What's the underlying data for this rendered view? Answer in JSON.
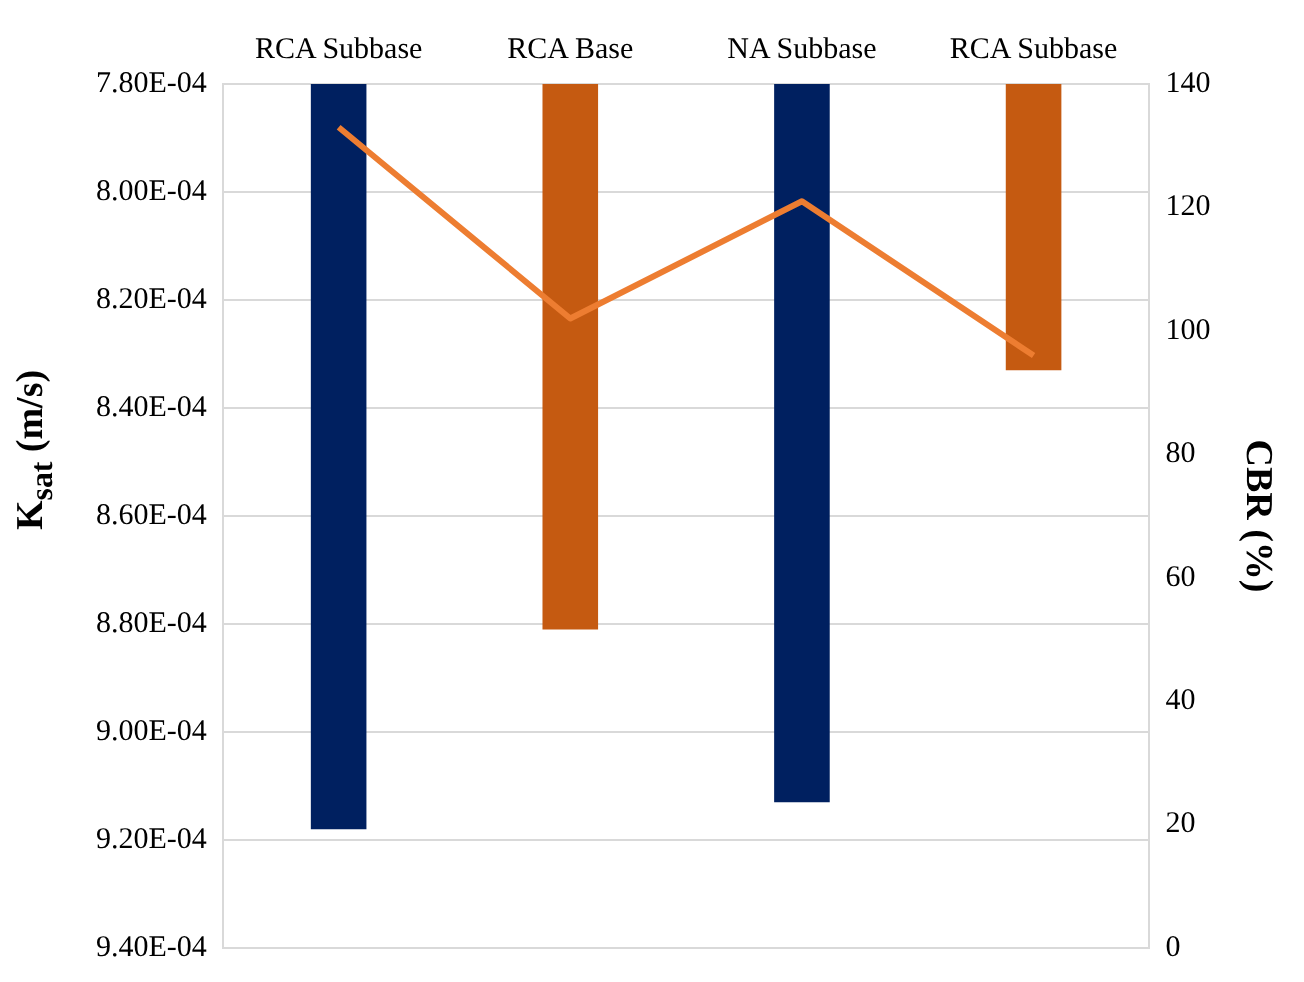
{
  "chart_data": {
    "type": "bar",
    "categories": [
      "RCA Subbase",
      "RCA Base",
      "NA Subbase",
      "RCA Subbase"
    ],
    "ylabel": "K$_{sat}$ (m/s)",
    "y2label": "CBR (%)",
    "series": [
      {
        "colors": [
          "#002060",
          "#c55a11",
          "#002060",
          "#c55a11"
        ],
        "values": [
          0.000918,
          0.000881,
          0.000913,
          0.000833
        ]
      },
      {
        "type": "line",
        "axis": "y2",
        "color": "#ed7d31",
        "marker": "none",
        "values": [
          133,
          102,
          121,
          96
        ]
      }
    ],
    "ylim": [
      0.00094,
      0.00078
    ],
    "yticks": [
      {
        "value": 0.00078,
        "label": "7.80E-04"
      },
      {
        "value": 0.0008,
        "label": "8.00E-04"
      },
      {
        "value": 0.00082,
        "label": "8.20E-04"
      },
      {
        "value": 0.00084,
        "label": "8.40E-04"
      },
      {
        "value": 0.00086,
        "label": "8.60E-04"
      },
      {
        "value": 0.00088,
        "label": "8.80E-04"
      },
      {
        "value": 0.0009,
        "label": "9.00E-04"
      },
      {
        "value": 0.00092,
        "label": "9.20E-04"
      },
      {
        "value": 0.00094,
        "label": "9.40E-04"
      }
    ],
    "y2lim": [
      0,
      140
    ],
    "y2ticks": [
      0,
      20,
      40,
      60,
      80,
      100,
      120,
      140
    ],
    "grid": "y",
    "legend": false
  }
}
